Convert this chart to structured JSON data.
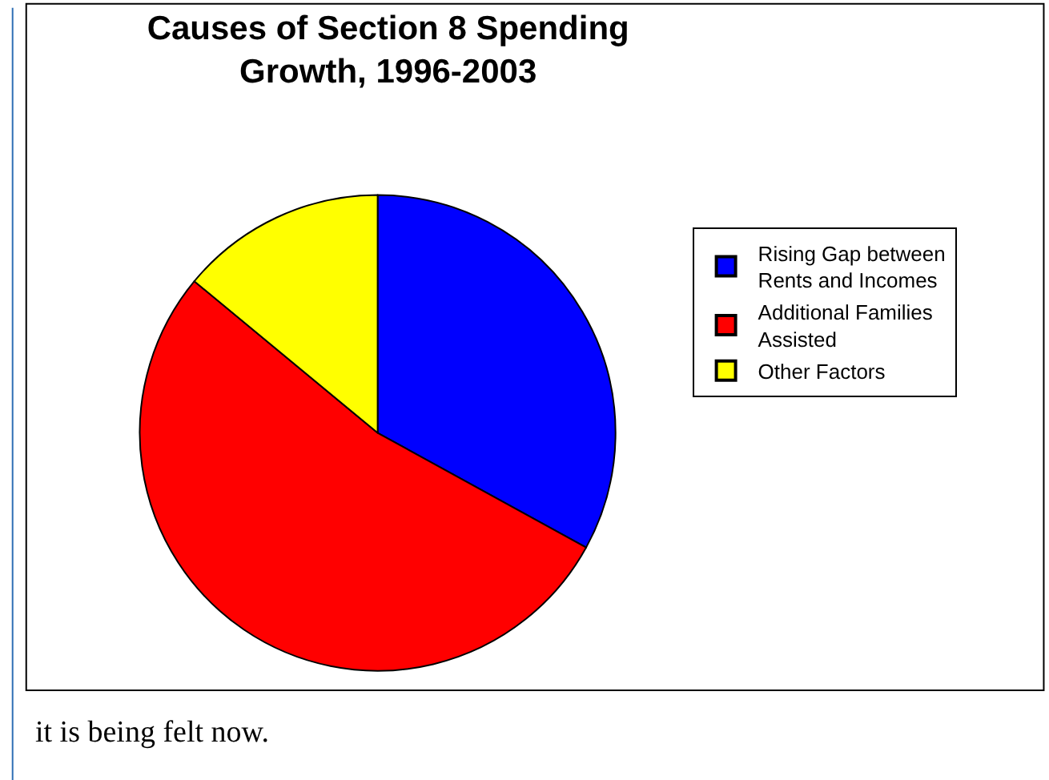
{
  "chart_data": {
    "type": "pie",
    "title": "Causes of Section 8 Spending Growth, 1996-2003",
    "categories": [
      "Rising Gap between Rents and Incomes",
      "Additional Families Assisted",
      "Other Factors"
    ],
    "values": [
      33,
      53,
      14
    ],
    "colors": [
      "#0000ff",
      "#ff0000",
      "#ffff00"
    ],
    "legend": "right",
    "annotations": [
      "it is being felt now."
    ]
  }
}
